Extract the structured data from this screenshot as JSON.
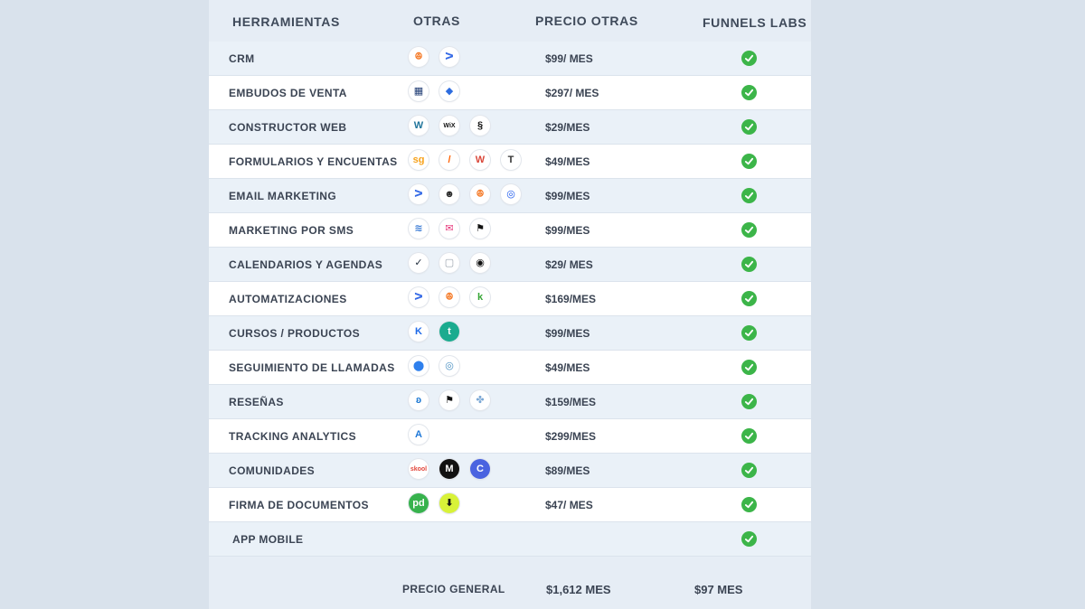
{
  "header": {
    "tools": "HERRAMIENTAS",
    "others": "OTRAS",
    "price_others": "PRECIO OTRAS",
    "brand": "FUNNELS LABS"
  },
  "rows": [
    {
      "label": "CRM",
      "price": "$99/ MES",
      "icons": [
        {
          "name": "hubspot-icon",
          "glyph": "ꔮ",
          "color": "#f57722"
        },
        {
          "name": "activecampaign-icon",
          "glyph": "ᐳ",
          "color": "#356ae6"
        }
      ]
    },
    {
      "label": "EMBUDOS DE VENTA",
      "price": "$297/ MES",
      "icons": [
        {
          "name": "kajabi-funnel-icon",
          "glyph": "▦",
          "color": "#1f3b73"
        },
        {
          "name": "layers-icon",
          "glyph": "◆",
          "color": "#2d6cdf"
        }
      ]
    },
    {
      "label": "CONSTRUCTOR WEB",
      "price": "$29/MES",
      "icons": [
        {
          "name": "wordpress-icon",
          "glyph": "W",
          "color": "#21759b"
        },
        {
          "name": "wix-icon",
          "glyph": "WiX",
          "color": "#111111"
        },
        {
          "name": "squarespace-icon",
          "glyph": "§",
          "color": "#111111"
        }
      ]
    },
    {
      "label": "FORMULARIOS Y ENCUENTAS",
      "price": "$49/MES",
      "icons": [
        {
          "name": "surveygizmo-icon",
          "glyph": "sg",
          "color": "#f7a21b"
        },
        {
          "name": "jotform-icon",
          "glyph": "/",
          "color": "#ff6100"
        },
        {
          "name": "wufoo-icon",
          "glyph": "W",
          "color": "#d9473a"
        },
        {
          "name": "typeform-icon",
          "glyph": "T",
          "color": "#333333"
        }
      ]
    },
    {
      "label": "EMAIL MARKETING",
      "price": "$99/MES",
      "icons": [
        {
          "name": "activecampaign-icon",
          "glyph": "ᐳ",
          "color": "#356ae6"
        },
        {
          "name": "mailchimp-icon",
          "glyph": "☻",
          "color": "#2b2b2b"
        },
        {
          "name": "hubspot-icon",
          "glyph": "ꔮ",
          "color": "#f57722"
        },
        {
          "name": "constant-contact-icon",
          "glyph": "◎",
          "color": "#1856ed"
        }
      ]
    },
    {
      "label": "MARKETING POR  SMS",
      "price": "$99/MES",
      "icons": [
        {
          "name": "waves-icon",
          "glyph": "≋",
          "color": "#3a7bd5"
        },
        {
          "name": "envelope-icon",
          "glyph": "✉",
          "color": "#e6357a"
        },
        {
          "name": "flag-icon",
          "glyph": "⚑",
          "color": "#111111"
        }
      ]
    },
    {
      "label": "CALENDARIOS Y AGENDAS",
      "price": "$29/ MES",
      "icons": [
        {
          "name": "acuity-check-icon",
          "glyph": "✓",
          "color": "#1e2a3a"
        },
        {
          "name": "calendar-icon",
          "glyph": "▢",
          "color": "#9aa3ad"
        },
        {
          "name": "calendly-icon",
          "glyph": "◉",
          "color": "#111111"
        }
      ]
    },
    {
      "label": "AUTOMATIZACIONES",
      "price": "$169/MES",
      "icons": [
        {
          "name": "activecampaign-icon",
          "glyph": "ᐳ",
          "color": "#356ae6"
        },
        {
          "name": "hubspot-icon",
          "glyph": "ꔮ",
          "color": "#f57722"
        },
        {
          "name": "keap-icon",
          "glyph": "k",
          "color": "#36a635"
        }
      ]
    },
    {
      "label": "CURSOS / PRODUCTOS",
      "price": "$99/MES",
      "icons": [
        {
          "name": "kajabi-icon",
          "glyph": "K",
          "color": "#1f6ae8"
        },
        {
          "name": "teachable-icon",
          "glyph": "t",
          "color": "#ffffff",
          "bg": "#1bab8f"
        }
      ]
    },
    {
      "label": "SEGUIMIENTO DE LLAMADAS",
      "price": "$49/MES",
      "icons": [
        {
          "name": "location-pin-icon",
          "glyph": "⬤",
          "color": "#2f80ed"
        },
        {
          "name": "callrail-icon",
          "glyph": "◎",
          "color": "#4a90c2"
        }
      ]
    },
    {
      "label": "RESEÑAS",
      "price": "$159/MES",
      "icons": [
        {
          "name": "birdeye-icon",
          "glyph": "ʚ",
          "color": "#1976d2"
        },
        {
          "name": "podium-icon",
          "glyph": "⚑",
          "color": "#111111"
        },
        {
          "name": "puzzle-icon",
          "glyph": "✤",
          "color": "#7aa7d4"
        }
      ]
    },
    {
      "label": "TRACKING ANALYTICS",
      "price": "$299/MES",
      "icons": [
        {
          "name": "analytics-icon",
          "glyph": "A",
          "color": "#1e78d8"
        }
      ]
    },
    {
      "label": "COMUNIDADES",
      "price": "$89/MES",
      "icons": [
        {
          "name": "skool-icon",
          "glyph": "skool",
          "color": "#e2463b"
        },
        {
          "name": "mighty-networks-icon",
          "glyph": "M",
          "color": "#ffffff",
          "bg": "#111111"
        },
        {
          "name": "circle-icon",
          "glyph": "C",
          "color": "#ffffff",
          "bg": "#4a63e0"
        }
      ]
    },
    {
      "label": "FIRMA DE DOCUMENTOS",
      "price": "$47/ MES",
      "icons": [
        {
          "name": "pandadoc-icon",
          "glyph": "pd",
          "color": "#ffffff",
          "bg": "#37b24d"
        },
        {
          "name": "download-doc-icon",
          "glyph": "⬇",
          "color": "#111111",
          "bg": "#d8f238"
        }
      ]
    },
    {
      "label": "APP MOBILE",
      "price": "",
      "icons": []
    }
  ],
  "footer": {
    "label": "PRECIO GENERAL",
    "others_total": "$1,612 MES",
    "brand_total": "$97 MES"
  },
  "colors": {
    "check": "#3cb549",
    "background": "#d9e2ec",
    "text": "#3b4453"
  }
}
